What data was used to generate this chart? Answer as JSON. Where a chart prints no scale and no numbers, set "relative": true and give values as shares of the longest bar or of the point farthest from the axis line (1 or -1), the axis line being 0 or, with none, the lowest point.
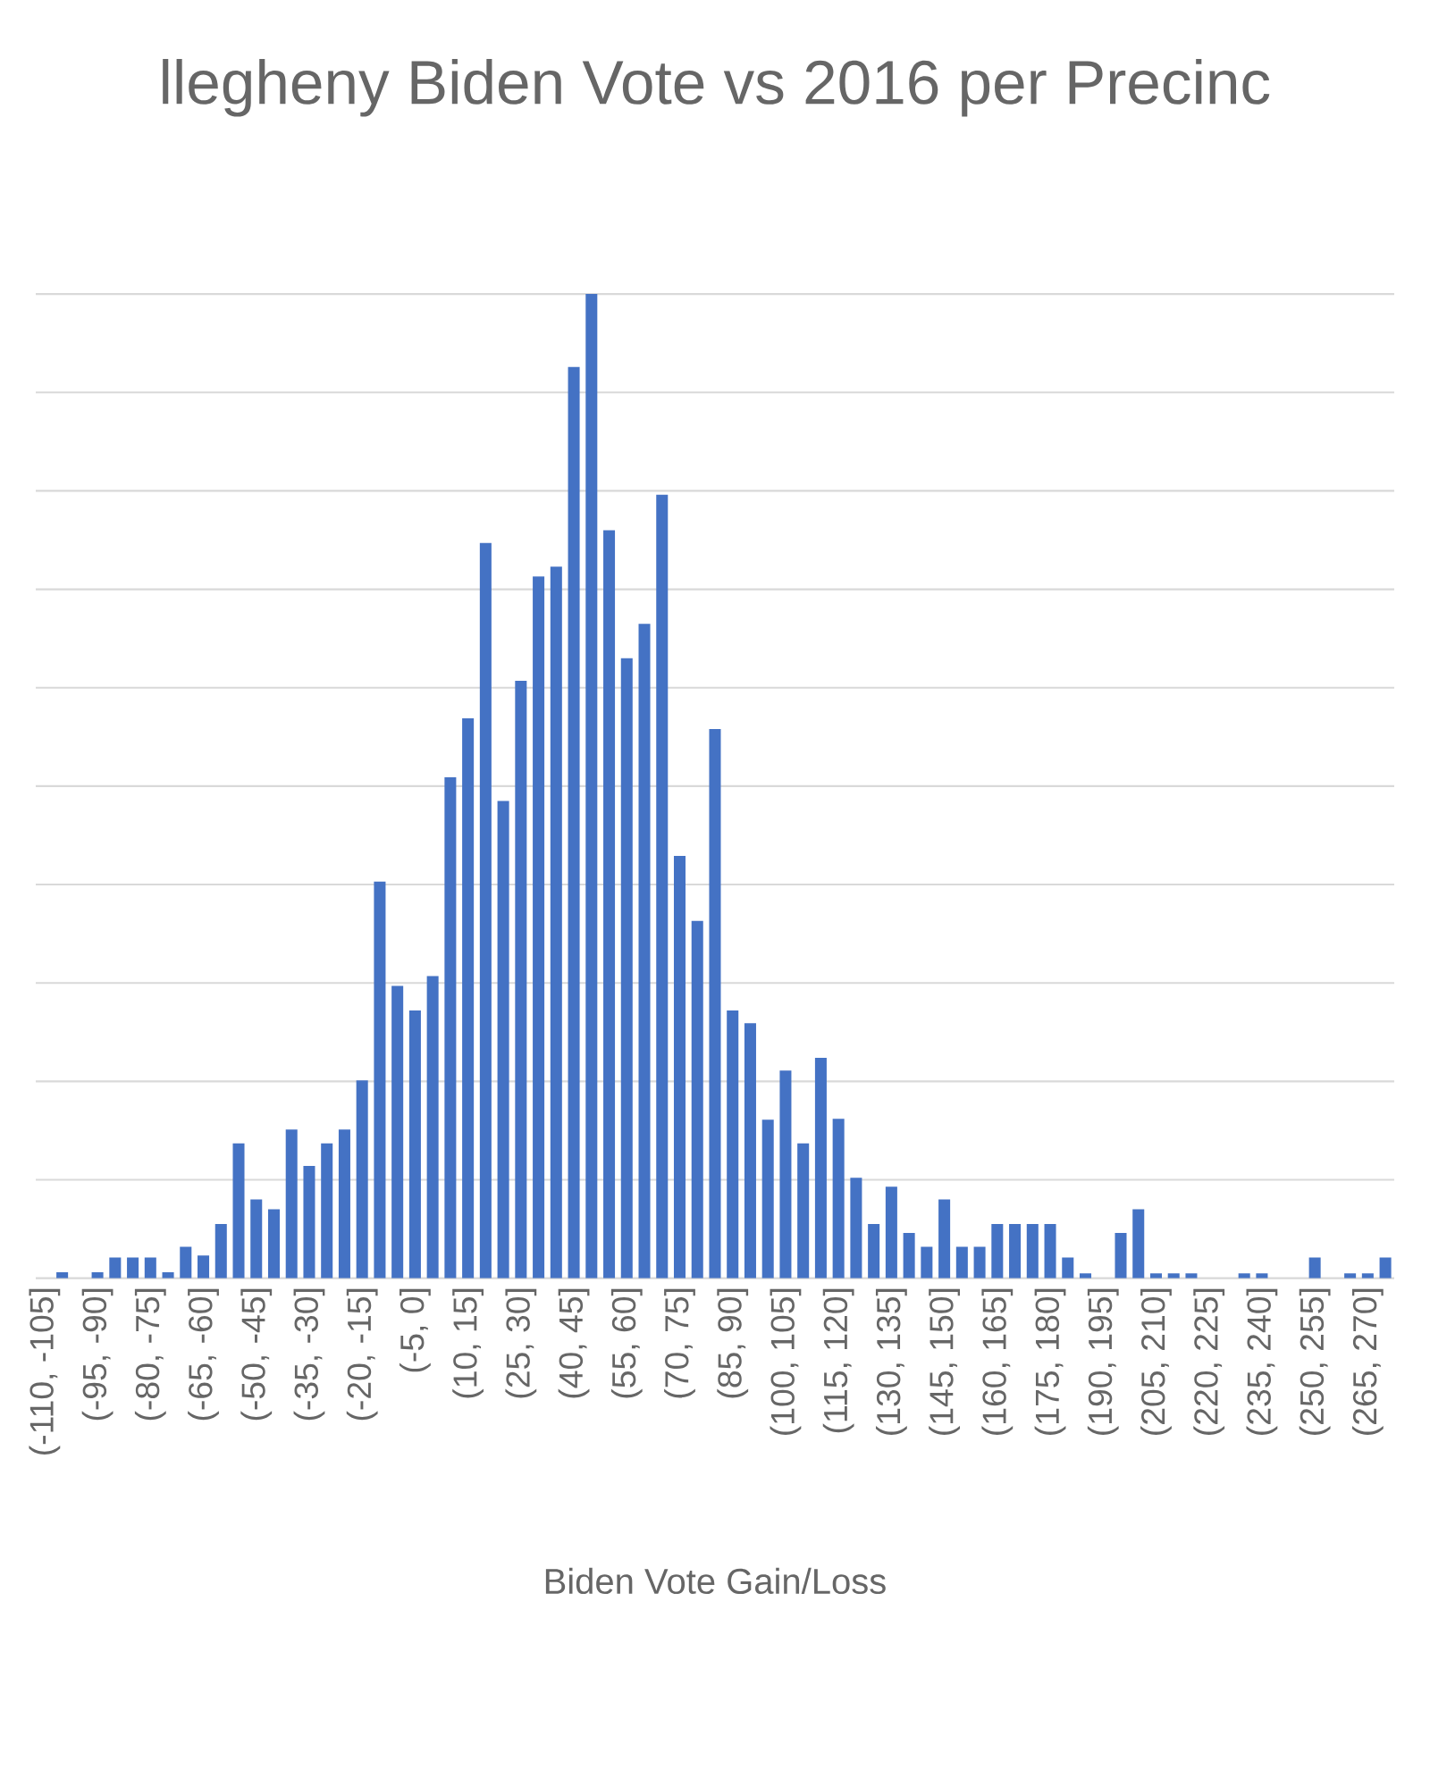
{
  "chart_data": {
    "type": "bar",
    "title": "llegheny Biden Vote vs 2016 per Precinc",
    "xlabel": "Biden Vote Gain/Loss",
    "relative": true,
    "grid": "y",
    "color": "#4472c4",
    "categories": [
      "(-110, -105]",
      null,
      null,
      "(-95, -90]",
      null,
      null,
      "(-80, -75]",
      null,
      null,
      "(-65, -60]",
      null,
      null,
      "(-50, -45]",
      null,
      null,
      "(-35, -30]",
      null,
      null,
      "(-20, -15]",
      null,
      null,
      "(-5, 0]",
      null,
      null,
      "(10, 15]",
      null,
      null,
      "(25, 30]",
      null,
      null,
      "(40, 45]",
      null,
      null,
      "(55, 60]",
      null,
      null,
      "(70, 75]",
      null,
      null,
      "(85, 90]",
      null,
      null,
      "(100, 105]",
      null,
      null,
      "(115, 120]",
      null,
      null,
      "(130, 135]",
      null,
      null,
      "(145, 150]",
      null,
      null,
      "(160, 165]",
      null,
      null,
      "(175, 180]",
      null,
      null,
      "(190, 195]",
      null,
      null,
      "(205, 210]",
      null,
      null,
      "(220, 225]",
      null,
      null,
      "(235, 240]",
      null,
      null,
      "(250, 255]",
      null,
      null,
      "(265, 270]",
      null
    ],
    "values": [
      0,
      0.006,
      0,
      0.006,
      0.021,
      0.021,
      0.021,
      0.006,
      0.032,
      0.023,
      0.055,
      0.137,
      0.08,
      0.07,
      0.151,
      0.114,
      0.137,
      0.151,
      0.201,
      0.403,
      0.297,
      0.272,
      0.307,
      0.509,
      0.569,
      0.747,
      0.485,
      0.607,
      0.713,
      0.723,
      0.926,
      1,
      0.76,
      0.63,
      0.665,
      0.796,
      0.429,
      0.363,
      0.558,
      0.272,
      0.259,
      0.161,
      0.211,
      0.137,
      0.224,
      0.162,
      0.102,
      0.055,
      0.093,
      0.046,
      0.032,
      0.08,
      0.032,
      0.032,
      0.055,
      0.055,
      0.055,
      0.055,
      0.021,
      0.005,
      0,
      0.046,
      0.07,
      0.005,
      0.005,
      0.005,
      0,
      0,
      0.005,
      0.005,
      0,
      0,
      0.021,
      0,
      0.005,
      0.005,
      0.021
    ]
  }
}
